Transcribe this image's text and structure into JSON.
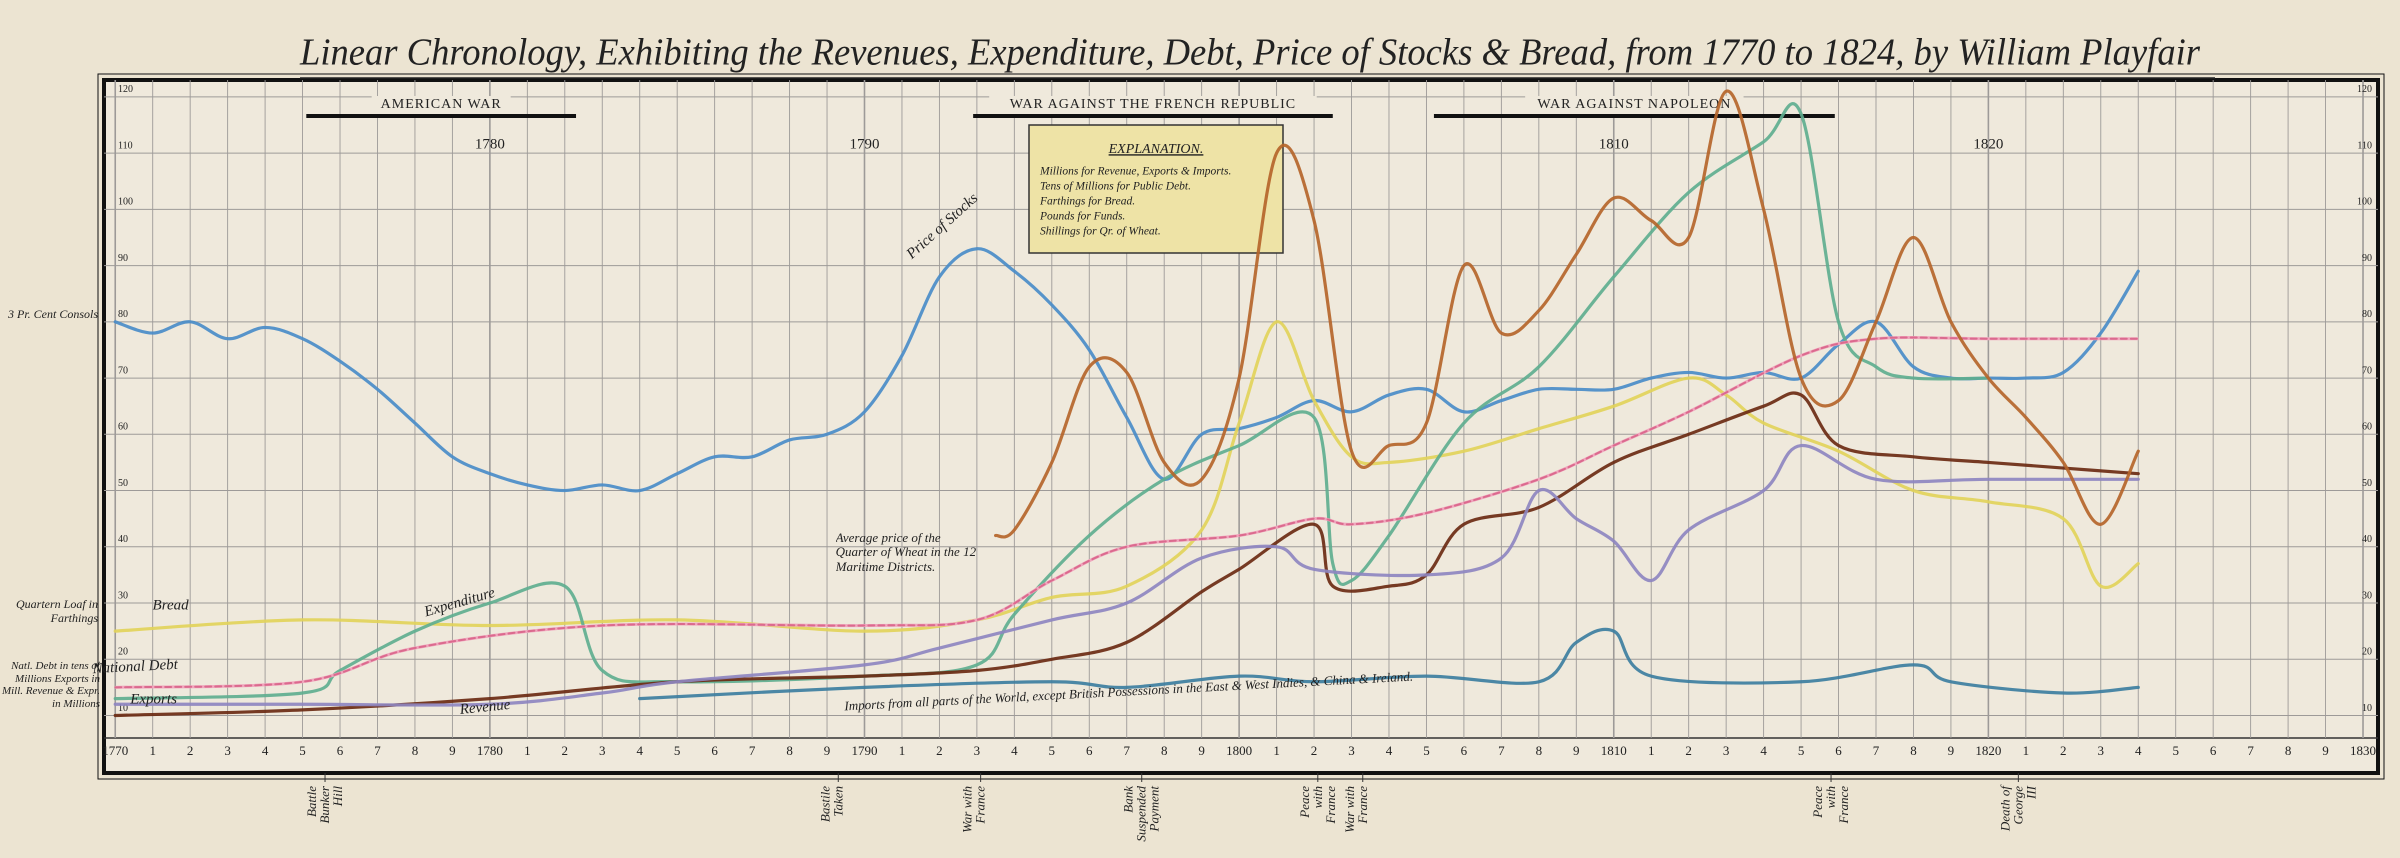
{
  "chart_data": {
    "type": "line",
    "title": "Linear Chronology, Exhibiting the Revenues, Expenditure, Debt, Price of Stocks & Bread, from 1770 to 1824, by William Playfair",
    "xlim": [
      1769.7,
      1830.4
    ],
    "ylim": [
      6,
      123
    ],
    "grid": true,
    "yticks": [
      10,
      20,
      30,
      40,
      50,
      60,
      70,
      80,
      90,
      100,
      110,
      120
    ],
    "xticks": [
      1770,
      {
        "value": 1771,
        "label": "1"
      },
      {
        "value": 1772,
        "label": "2"
      },
      {
        "value": 1773,
        "label": "3"
      },
      {
        "value": 1774,
        "label": "4"
      },
      {
        "value": 1775,
        "label": "5"
      },
      {
        "value": 1776,
        "label": "6"
      },
      {
        "value": 1777,
        "label": "7"
      },
      {
        "value": 1778,
        "label": "8"
      },
      {
        "value": 1779,
        "label": "9"
      },
      1780,
      {
        "value": 1781,
        "label": "1"
      },
      {
        "value": 1782,
        "label": "2"
      },
      {
        "value": 1783,
        "label": "3"
      },
      {
        "value": 1784,
        "label": "4"
      },
      {
        "value": 1785,
        "label": "5"
      },
      {
        "value": 1786,
        "label": "6"
      },
      {
        "value": 1787,
        "label": "7"
      },
      {
        "value": 1788,
        "label": "8"
      },
      {
        "value": 1789,
        "label": "9"
      },
      1790,
      {
        "value": 1791,
        "label": "1"
      },
      {
        "value": 1792,
        "label": "2"
      },
      {
        "value": 1793,
        "label": "3"
      },
      {
        "value": 1794,
        "label": "4"
      },
      {
        "value": 1795,
        "label": "5"
      },
      {
        "value": 1796,
        "label": "6"
      },
      {
        "value": 1797,
        "label": "7"
      },
      {
        "value": 1798,
        "label": "8"
      },
      {
        "value": 1799,
        "label": "9"
      },
      1800,
      {
        "value": 1801,
        "label": "1"
      },
      {
        "value": 1802,
        "label": "2"
      },
      {
        "value": 1803,
        "label": "3"
      },
      {
        "value": 1804,
        "label": "4"
      },
      {
        "value": 1805,
        "label": "5"
      },
      {
        "value": 1806,
        "label": "6"
      },
      {
        "value": 1807,
        "label": "7"
      },
      {
        "value": 1808,
        "label": "8"
      },
      {
        "value": 1809,
        "label": "9"
      },
      1810,
      {
        "value": 1811,
        "label": "1"
      },
      {
        "value": 1812,
        "label": "2"
      },
      {
        "value": 1813,
        "label": "3"
      },
      {
        "value": 1814,
        "label": "4"
      },
      {
        "value": 1815,
        "label": "5"
      },
      {
        "value": 1816,
        "label": "6"
      },
      {
        "value": 1817,
        "label": "7"
      },
      {
        "value": 1818,
        "label": "8"
      },
      {
        "value": 1819,
        "label": "9"
      },
      1820,
      {
        "value": 1821,
        "label": "1"
      },
      {
        "value": 1822,
        "label": "2"
      },
      {
        "value": 1823,
        "label": "3"
      },
      {
        "value": 1824,
        "label": "4"
      },
      {
        "value": 1825,
        "label": "5"
      },
      {
        "value": 1826,
        "label": "6"
      },
      {
        "value": 1827,
        "label": "7"
      },
      {
        "value": 1828,
        "label": "8"
      },
      {
        "value": 1829,
        "label": "9"
      },
      1830
    ],
    "decades": [
      1780,
      1790,
      1800,
      1810,
      1820
    ],
    "wars": [
      {
        "label": "AMERICAN WAR",
        "start": 1775.1,
        "end": 1782.3
      },
      {
        "label": "WAR AGAINST THE FRENCH REPUBLIC",
        "start": 1792.9,
        "end": 1802.5
      },
      {
        "label": "WAR AGAINST NAPOLEON",
        "start": 1805.2,
        "end": 1815.9
      }
    ],
    "events": [
      {
        "label": "Battle Bunker Hill",
        "x": 1775.6
      },
      {
        "label": "Bastile Taken",
        "x": 1789.3
      },
      {
        "label": "War with France",
        "x": 1793.1
      },
      {
        "label": "Bank Suspended Payment",
        "x": 1797.4
      },
      {
        "label": "Peace with France",
        "x": 1802.1
      },
      {
        "label": "War with France",
        "x": 1803.3
      },
      {
        "label": "Peace with France",
        "x": 1815.8
      },
      {
        "label": "Death of George III",
        "x": 1820.8
      }
    ],
    "explanation": {
      "title": "EXPLANATION.",
      "lines": [
        "Millions for Revenue, Exports & Imports.",
        "Tens of Millions for Public Debt.",
        "Farthings for Bread.",
        "Pounds for Funds.",
        "Shillings for Qr. of Wheat."
      ]
    },
    "axis_notes": [
      "3 Pr. Cent Consols",
      "Quartern Loaf in Farthings",
      "Natl. Debt in tens of Millions Exports in Mill. Revenue & Expr. in Millions"
    ],
    "series": [
      {
        "name": "Price of Stocks",
        "color": "#4a8cc8",
        "x": [
          1770,
          1771,
          1772,
          1773,
          1774,
          1775,
          1776,
          1777,
          1778,
          1779,
          1780,
          1781,
          1782,
          1783,
          1784,
          1785,
          1786,
          1787,
          1788,
          1789,
          1790,
          1791,
          1792,
          1793,
          1794,
          1795,
          1796,
          1797,
          1798,
          1799,
          1800,
          1801,
          1802,
          1803,
          1804,
          1805,
          1806,
          1807,
          1808,
          1809,
          1810,
          1811,
          1812,
          1813,
          1814,
          1815,
          1816,
          1817,
          1818,
          1819,
          1820,
          1821,
          1822,
          1823,
          1824
        ],
        "values": [
          80,
          78,
          80,
          77,
          79,
          77,
          73,
          68,
          62,
          56,
          53,
          51,
          50,
          51,
          50,
          53,
          56,
          56,
          59,
          60,
          64,
          74,
          88,
          93,
          89,
          83,
          75,
          63,
          52,
          60,
          61,
          63,
          66,
          64,
          67,
          68,
          64,
          66,
          68,
          68,
          68,
          70,
          71,
          70,
          71,
          70,
          76,
          80,
          72,
          70,
          70,
          70,
          71,
          78,
          89
        ]
      },
      {
        "name": "Bread",
        "color": "#e2d25a",
        "x": [
          1770,
          1775,
          1780,
          1785,
          1790,
          1793,
          1795,
          1797,
          1799,
          1800,
          1801,
          1802,
          1803,
          1804,
          1806,
          1808,
          1810,
          1812,
          1813,
          1814,
          1816,
          1818,
          1820,
          1822,
          1823,
          1824
        ],
        "values": [
          25,
          27,
          26,
          27,
          25,
          27,
          31,
          33,
          43,
          62,
          80,
          66,
          56,
          55,
          57,
          61,
          65,
          70,
          67,
          62,
          57,
          50,
          48,
          45,
          33,
          37
        ]
      },
      {
        "name": "Expenditure",
        "color": "#5fae8f",
        "x": [
          1770,
          1775,
          1776,
          1778,
          1780,
          1782,
          1783,
          1785,
          1790,
          1793,
          1794,
          1796,
          1798,
          1800,
          1802,
          1802.5,
          1803,
          1804,
          1806,
          1808,
          1810,
          1812,
          1814,
          1815,
          1816,
          1817,
          1818,
          1820
        ],
        "values": [
          13,
          14,
          18,
          25,
          30,
          33,
          18,
          16,
          17,
          19,
          28,
          42,
          52,
          58,
          63,
          37,
          34,
          42,
          62,
          72,
          88,
          103,
          112,
          117,
          80,
          72,
          70,
          70
        ]
      },
      {
        "name": "Revenue",
        "color": "#6b2a12",
        "x": [
          1770,
          1775,
          1780,
          1785,
          1790,
          1793,
          1795,
          1797,
          1799,
          1800,
          1802,
          1802.5,
          1804,
          1805,
          1806,
          1808,
          1810,
          1812,
          1814,
          1815,
          1816,
          1818,
          1820,
          1822,
          1824
        ],
        "values": [
          10,
          11,
          13,
          16,
          17,
          18,
          20,
          23,
          32,
          36,
          44,
          33,
          33,
          35,
          44,
          47,
          55,
          60,
          65,
          67,
          58,
          56,
          55,
          54,
          53
        ]
      },
      {
        "name": "National Debt",
        "color": "#d9658a",
        "dashed": true,
        "x": [
          1770,
          1775,
          1778,
          1783,
          1790,
          1793,
          1795,
          1797,
          1800,
          1802,
          1803,
          1805,
          1808,
          1810,
          1812,
          1815,
          1817,
          1820,
          1824
        ],
        "values": [
          15,
          16,
          22,
          26,
          26,
          27,
          34,
          40,
          42,
          45,
          44,
          46,
          52,
          58,
          64,
          74,
          77,
          77,
          77
        ]
      },
      {
        "name": "Exports",
        "color": "#8e86c0",
        "x": [
          1770,
          1775,
          1780,
          1783,
          1785,
          1790,
          1792,
          1795,
          1797,
          1799,
          1801,
          1802,
          1805,
          1807,
          1808,
          1809,
          1810,
          1811,
          1812,
          1814,
          1815,
          1817,
          1820,
          1824
        ],
        "values": [
          12,
          12,
          12,
          14,
          16,
          19,
          22,
          27,
          30,
          38,
          40,
          36,
          35,
          38,
          50,
          45,
          41,
          34,
          43,
          50,
          58,
          52,
          52,
          52
        ]
      },
      {
        "name": "Imports from all parts of the World, except British Possessions in the East & West Indies, & China & Ireland.",
        "color": "#3d7ea0",
        "x": [
          1784,
          1790,
          1795,
          1797,
          1800,
          1802,
          1805,
          1808,
          1809,
          1810,
          1811,
          1815,
          1818,
          1819,
          1822,
          1824
        ],
        "values": [
          13,
          15,
          16,
          15,
          17,
          16,
          17,
          16,
          23,
          25,
          17,
          16,
          19,
          16,
          14,
          15
        ]
      },
      {
        "name": "Average price of the Quarter of Wheat in the 12 Maritime Districts.",
        "color": "#b5652a",
        "x": [
          1793.5,
          1794,
          1795,
          1796,
          1797,
          1798,
          1799,
          1800,
          1801,
          1802,
          1803,
          1804,
          1805,
          1806,
          1807,
          1808,
          1809,
          1810,
          1811,
          1812,
          1813,
          1814,
          1815,
          1816,
          1817,
          1818,
          1819,
          1820,
          1821,
          1822,
          1823,
          1824
        ],
        "values": [
          42,
          43,
          55,
          72,
          71,
          55,
          52,
          70,
          110,
          98,
          57,
          58,
          62,
          90,
          78,
          82,
          92,
          102,
          98,
          95,
          121,
          100,
          70,
          66,
          80,
          95,
          80,
          70,
          63,
          55,
          44,
          57
        ]
      }
    ]
  }
}
